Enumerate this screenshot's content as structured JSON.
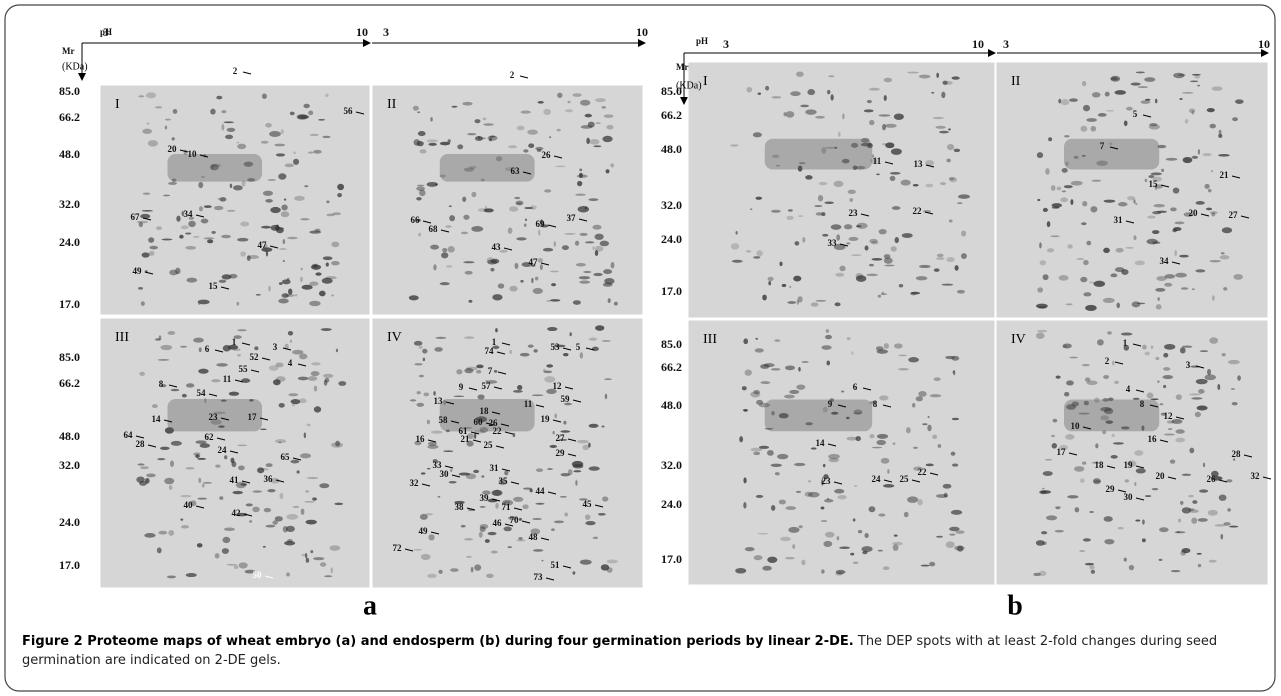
{
  "figure": {
    "panels": [
      {
        "letter": "a",
        "ph_label": "pH",
        "mr_label": "Mr",
        "unit_label": "(KDa)",
        "top_axis": [
          "3",
          "10",
          "3",
          "10"
        ],
        "y_ticks_top": [
          "85.0",
          "66.2",
          "48.0",
          "32.0",
          "24.0",
          "17.0"
        ],
        "y_ticks_bottom": [
          "85.0",
          "66.2",
          "48.0",
          "32.0",
          "24.0",
          "17.0"
        ],
        "gels": [
          {
            "roman": "I",
            "spots": [
              "2",
              "56",
              "20",
              "10",
              "67",
              "34",
              "47",
              "49",
              "15"
            ]
          },
          {
            "roman": "II",
            "spots": [
              "2",
              "63",
              "26",
              "66",
              "68",
              "69",
              "37",
              "43",
              "47"
            ]
          },
          {
            "roman": "III",
            "spots": [
              "1",
              "6",
              "52",
              "3",
              "4",
              "55",
              "11",
              "8",
              "54",
              "14",
              "23",
              "17",
              "64",
              "28",
              "62",
              "24",
              "65",
              "36",
              "41",
              "40",
              "42",
              "50"
            ]
          },
          {
            "roman": "IV",
            "spots": [
              "1",
              "74",
              "53",
              "5",
              "7",
              "9",
              "57",
              "12",
              "59",
              "11",
              "13",
              "58",
              "60",
              "18",
              "19",
              "26",
              "61",
              "22",
              "21",
              "25",
              "27",
              "29",
              "16",
              "31",
              "33",
              "30",
              "32",
              "35",
              "44",
              "39",
              "38",
              "71",
              "45",
              "70",
              "46",
              "48",
              "49",
              "72",
              "51",
              "73"
            ]
          }
        ]
      },
      {
        "letter": "b",
        "ph_label": "pH",
        "mr_label": "Mr",
        "unit_label": "(KDa)",
        "top_axis": [
          "3",
          "10",
          "3",
          "10"
        ],
        "y_ticks_top": [
          "85.0",
          "66.2",
          "48.0",
          "32.0",
          "24.0",
          "17.0"
        ],
        "y_ticks_bottom": [
          "85.0",
          "66.2",
          "48.0",
          "32.0",
          "24.0",
          "17.0"
        ],
        "gels": [
          {
            "roman": "I",
            "spots": [
              "11",
              "13",
              "23",
              "22",
              "33"
            ]
          },
          {
            "roman": "II",
            "spots": [
              "5",
              "7",
              "15",
              "21",
              "20",
              "27",
              "31",
              "34"
            ]
          },
          {
            "roman": "III",
            "spots": [
              "6",
              "9",
              "8",
              "14",
              "23",
              "24",
              "25",
              "22"
            ]
          },
          {
            "roman": "IV",
            "spots": [
              "1",
              "2",
              "3",
              "4",
              "8",
              "12",
              "10",
              "16",
              "17",
              "18",
              "28",
              "32",
              "19",
              "20",
              "26",
              "29",
              "30"
            ]
          }
        ]
      }
    ],
    "caption": {
      "title": "Figure 2 Proteome maps of wheat embryo (a) and endosperm (b) during four germination periods by linear 2-DE.",
      "text": "The DEP spots with at least 2-fold changes during seed germination are indicated on 2-DE gels."
    }
  }
}
